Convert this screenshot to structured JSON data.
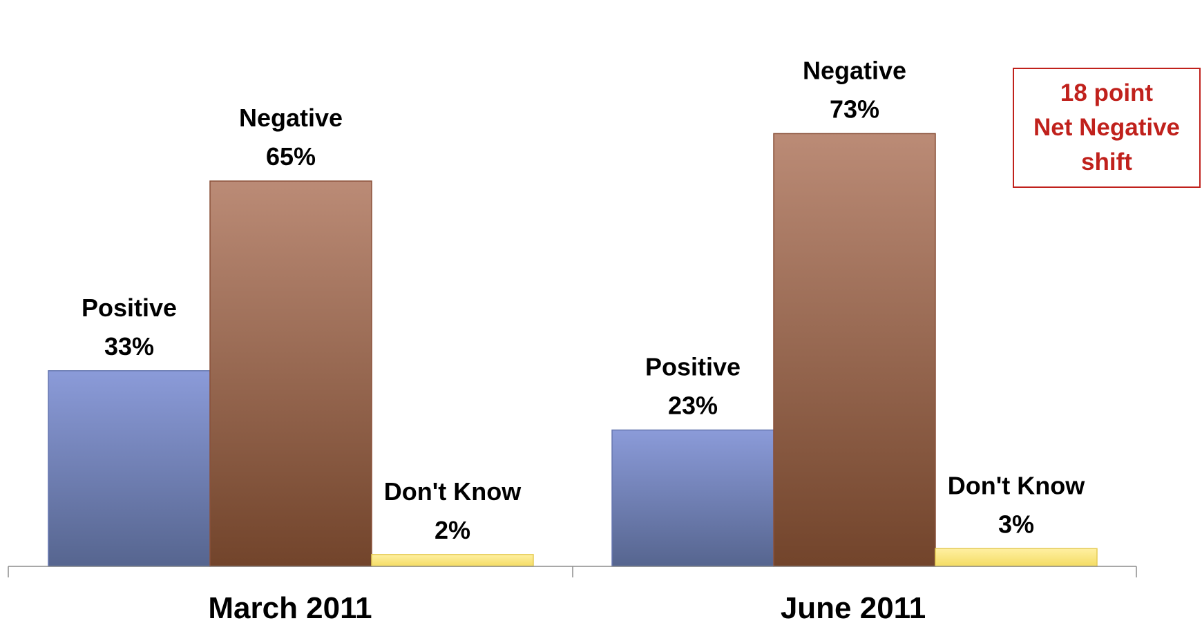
{
  "chart_data": {
    "type": "bar",
    "categories": [
      "March 2011",
      "June 2011"
    ],
    "series": [
      {
        "name": "Positive",
        "values": [
          33,
          23
        ],
        "labels": [
          "33%",
          "23%"
        ],
        "color": "#6f82bf"
      },
      {
        "name": "Negative",
        "values": [
          65,
          73
        ],
        "labels": [
          "65%",
          "73%"
        ],
        "color": "#9a5a3b"
      },
      {
        "name": "Don't Know",
        "values": [
          2,
          3
        ],
        "labels": [
          "2%",
          "3%"
        ],
        "color": "#f7e27a"
      }
    ],
    "ylim": [
      0,
      80
    ],
    "grid": false,
    "legend": "none",
    "title": "",
    "xlabel": "",
    "ylabel": ""
  },
  "annotation": {
    "lines": [
      "18 point",
      "Net Negative",
      "shift"
    ],
    "color": "#c0211c"
  }
}
